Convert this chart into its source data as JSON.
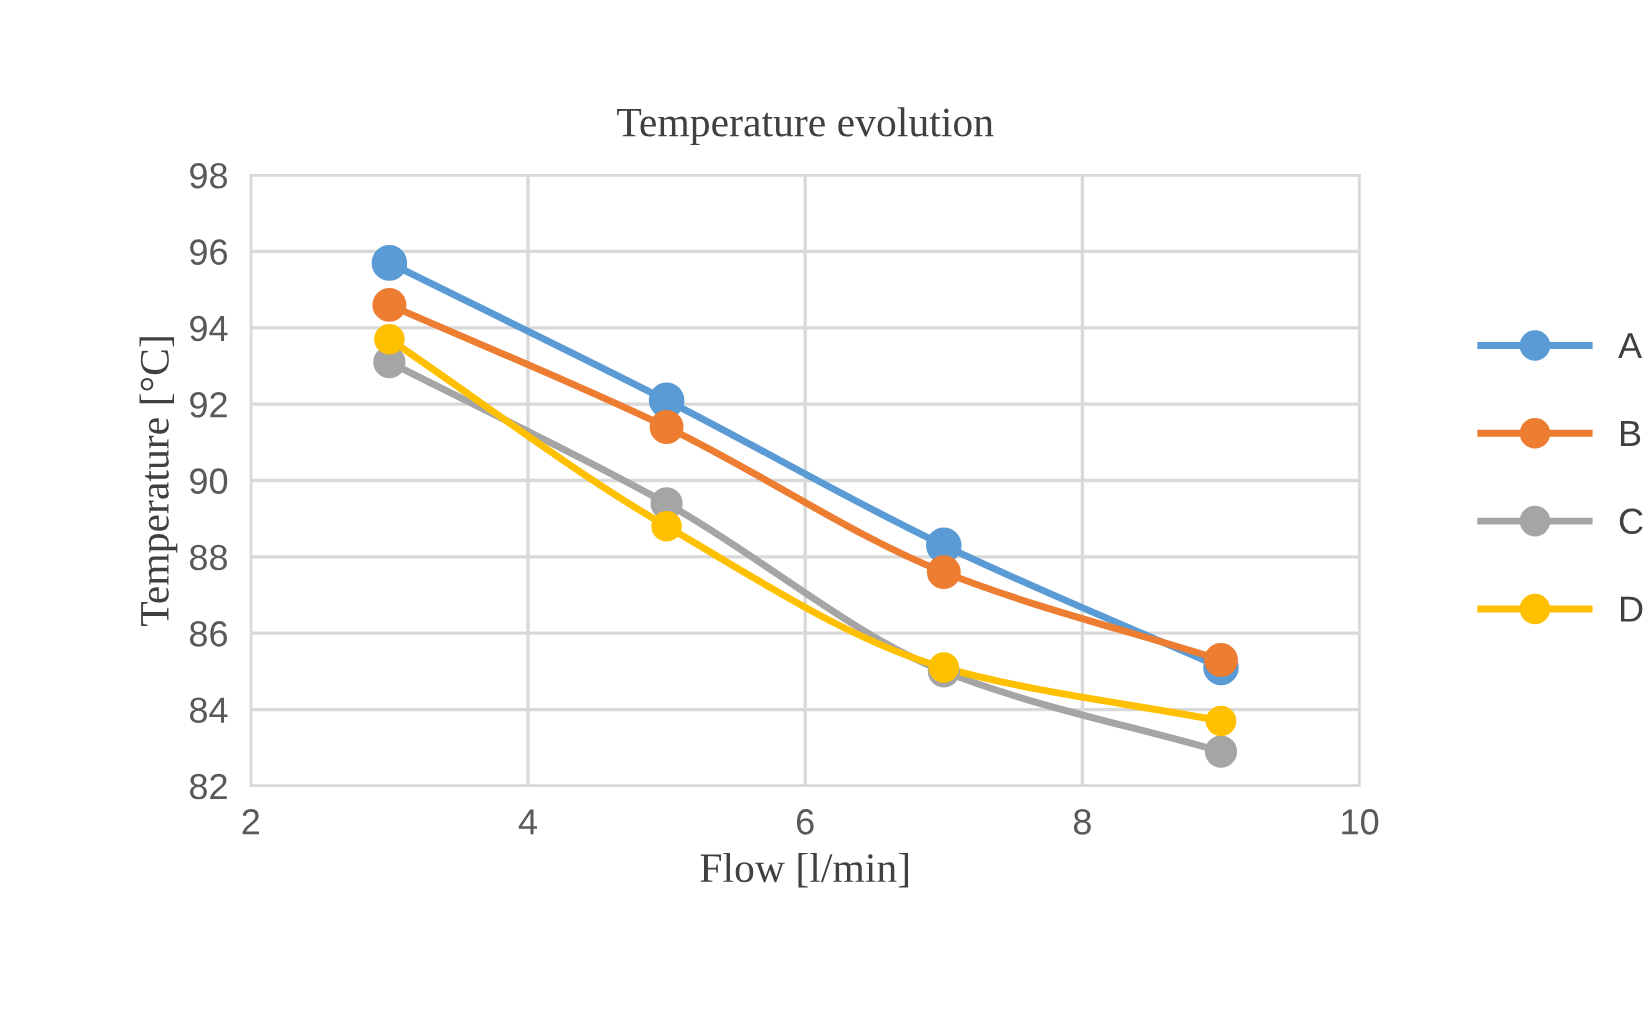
{
  "chart_data": {
    "type": "line",
    "title": "Temperature evolution",
    "xlabel": "Flow [l/min]",
    "ylabel": "Temperature [°C]",
    "x": [
      3,
      5,
      7,
      9
    ],
    "series": [
      {
        "name": "A",
        "color": "#5b9bd5",
        "values": [
          95.7,
          92.1,
          88.3,
          85.1
        ]
      },
      {
        "name": "B",
        "color": "#ed7d31",
        "values": [
          94.6,
          91.4,
          87.6,
          85.3
        ]
      },
      {
        "name": "C",
        "color": "#a5a5a5",
        "values": [
          93.1,
          89.4,
          85.0,
          82.9
        ]
      },
      {
        "name": "D",
        "color": "#ffc000",
        "values": [
          93.7,
          88.8,
          85.1,
          83.7
        ]
      }
    ],
    "xlim": [
      2,
      10
    ],
    "xticks": [
      2,
      4,
      6,
      8,
      10
    ],
    "ylim": [
      82,
      98
    ],
    "yticks": [
      82,
      84,
      86,
      88,
      90,
      92,
      94,
      96,
      98
    ],
    "grid": true,
    "legend": "right",
    "marker": "circle",
    "line_style": "solid"
  }
}
